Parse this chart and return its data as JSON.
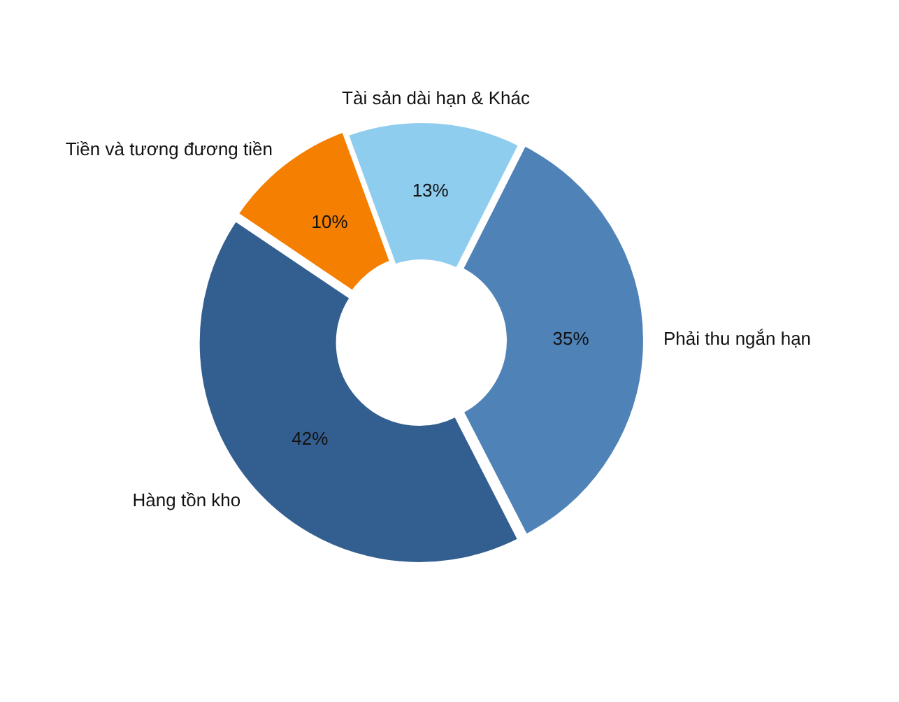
{
  "chart_data": {
    "type": "donut",
    "categories": [
      "Tài sản dài hạn & Khác",
      "Phải thu ngắn hạn",
      "Hàng tồn kho",
      "Tiền và tương đương tiền"
    ],
    "values": [
      13,
      35,
      42,
      10
    ],
    "value_labels": [
      "13%",
      "35%",
      "42%",
      "10%"
    ],
    "colors": [
      "#8fcdee",
      "#4f83b8",
      "#335e90",
      "#f57f00"
    ],
    "legend": false
  }
}
